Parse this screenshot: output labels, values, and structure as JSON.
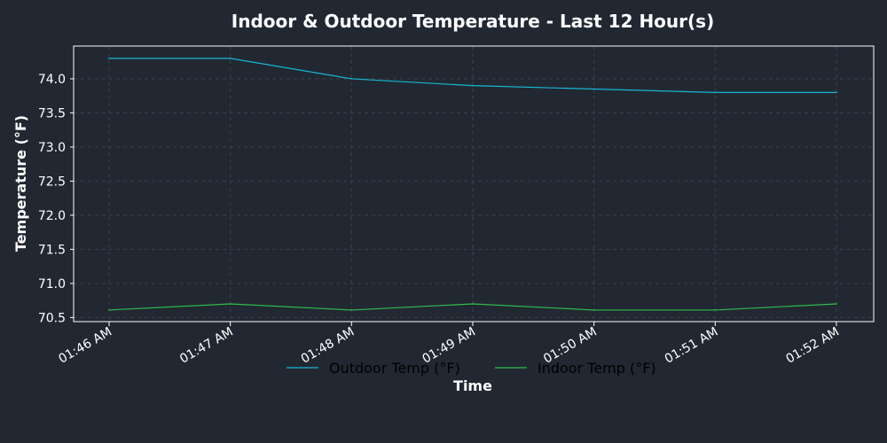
{
  "colors": {
    "figure_bg": "#222832",
    "plot_bg": "#222832",
    "axes_edge": "#ffffff",
    "grid": "#3a414d",
    "text": "#ffffff",
    "legend_text": "#000000"
  },
  "chart_data": {
    "type": "line",
    "title": "Indoor & Outdoor Temperature - Last 12 Hour(s)",
    "xlabel": "Time",
    "ylabel": "Temperature (°F)",
    "x": [
      "01:46 AM",
      "01:47 AM",
      "01:48 AM",
      "01:49 AM",
      "01:50 AM",
      "01:51 AM",
      "01:52 AM"
    ],
    "ylim": [
      70.44,
      74.48
    ],
    "yticks": [
      70.5,
      71.0,
      71.5,
      72.0,
      72.5,
      73.0,
      73.5,
      74.0
    ],
    "ytick_labels": [
      "70.5",
      "71.0",
      "71.5",
      "72.0",
      "72.5",
      "73.0",
      "73.5",
      "74.0"
    ],
    "grid": true,
    "legend_position": "bottom-center",
    "series": [
      {
        "name": "Outdoor Temp (°F)",
        "color": "#17b6d6",
        "values": [
          74.3,
          74.3,
          74.0,
          73.9,
          73.85,
          73.8,
          73.8
        ]
      },
      {
        "name": "Indoor Temp (°F)",
        "color": "#2ebd4a",
        "values": [
          70.61,
          70.7,
          70.61,
          70.7,
          70.61,
          70.61,
          70.7
        ]
      }
    ]
  }
}
